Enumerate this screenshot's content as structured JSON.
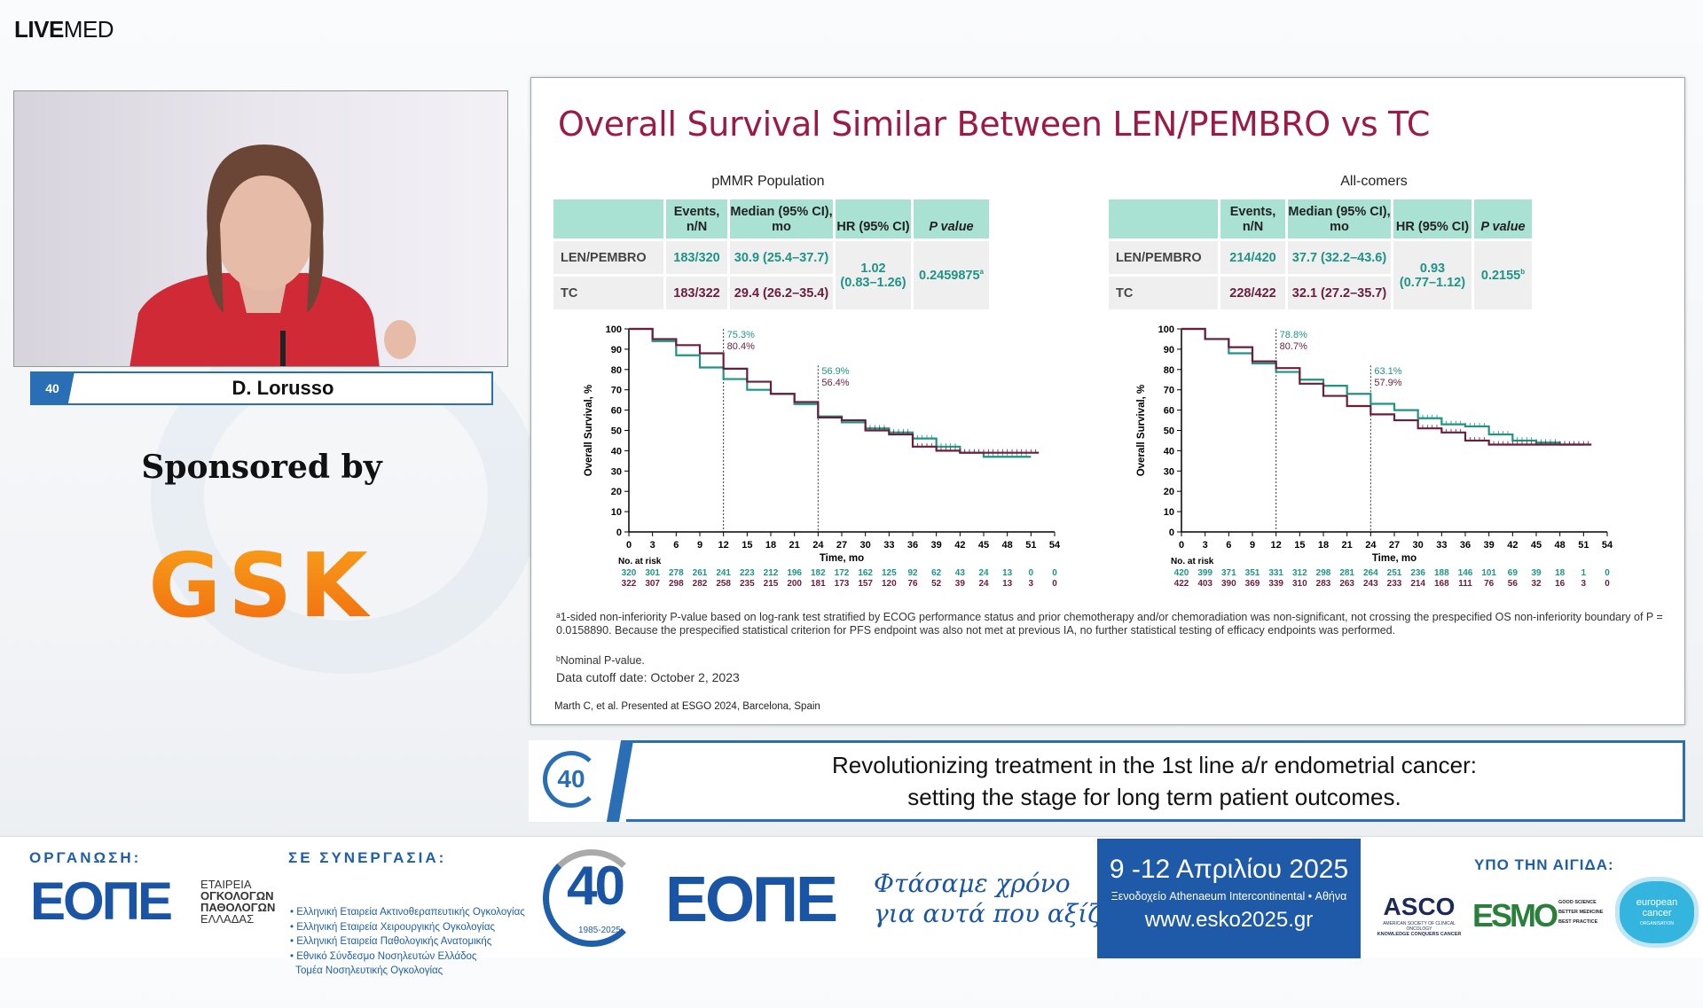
{
  "app": {
    "logo_bold": "LIVE",
    "logo_rest": "MED"
  },
  "speaker": {
    "badge": "40",
    "name": "D. Lorusso"
  },
  "sponsor": {
    "label": "Sponsored by",
    "brand": "GSK",
    "brand_color": "#f47b16"
  },
  "slide": {
    "title": "Overall Survival Similar Between LEN/PEMBRO vs TC",
    "colors": {
      "len_pembro": "#1e9486",
      "tc": "#6b1e3c",
      "header": "#a9e2d2"
    },
    "tables": [
      {
        "subtitle": "pMMR Population",
        "headers": [
          "",
          "Events, n/N",
          "Median (95% CI), mo",
          "HR (95% CI)",
          "P value"
        ],
        "rows": [
          {
            "arm": "LEN/PEMBRO",
            "events": "183/320",
            "median": "30.9 (25.4–37.7)"
          },
          {
            "arm": "TC",
            "events": "183/322",
            "median": "29.4 (26.2–35.4)"
          }
        ],
        "hr": "1.02",
        "hr_ci": "(0.83–1.26)",
        "p": "0.2459875",
        "p_sup": "a"
      },
      {
        "subtitle": "All-comers",
        "headers": [
          "",
          "Events, n/N",
          "Median (95% CI), mo",
          "HR (95% CI)",
          "P value"
        ],
        "rows": [
          {
            "arm": "LEN/PEMBRO",
            "events": "214/420",
            "median": "37.7 (32.2–43.6)"
          },
          {
            "arm": "TC",
            "events": "228/422",
            "median": "32.1 (27.2–35.7)"
          }
        ],
        "hr": "0.93",
        "hr_ci": "(0.77–1.12)",
        "p": "0.2155",
        "p_sup": "b"
      }
    ],
    "footnotes": {
      "a": "ᵃ1-sided non-inferiority P-value based on log-rank test stratified by ECOG performance status and prior chemotherapy and/or chemoradiation was non-significant, not crossing the prespecified OS non-inferiority boundary of  P = 0.0158890. Because the prespecified statistical criterion for PFS endpoint was also not met at previous IA, no further statistical testing of efficacy endpoints was performed.",
      "b": "ᵇNominal P-value.",
      "cutoff": "Data cutoff date: October 2, 2023",
      "citation": "Marth C, et al. Presented at ESGO 2024, Barcelona, Spain"
    }
  },
  "chart_data": [
    {
      "type": "line",
      "step": true,
      "ylabel": "Overall Survival, %",
      "xlabel": "Time, mo",
      "xlim": [
        0,
        54
      ],
      "ylim": [
        0,
        100
      ],
      "xticks": [
        0,
        3,
        6,
        9,
        12,
        15,
        18,
        21,
        24,
        27,
        30,
        33,
        36,
        39,
        42,
        45,
        48,
        51,
        54
      ],
      "yticks": [
        0,
        10,
        20,
        30,
        40,
        50,
        60,
        70,
        80,
        90,
        100
      ],
      "risk_label": "No. at risk",
      "series": [
        {
          "color": "#1e9486",
          "x": [
            0,
            3,
            6,
            9,
            12,
            15,
            18,
            21,
            24,
            27,
            30,
            33,
            36,
            39,
            42,
            45,
            48,
            51
          ],
          "y": [
            100,
            94,
            87,
            81,
            75.3,
            70,
            68,
            63,
            56.9,
            54,
            51,
            49,
            46,
            42,
            39,
            37,
            37,
            37
          ],
          "at_risk": [
            320,
            301,
            278,
            261,
            241,
            223,
            212,
            196,
            182,
            172,
            162,
            125,
            92,
            62,
            43,
            24,
            13,
            0,
            0
          ]
        },
        {
          "color": "#6b1e3c",
          "x": [
            0,
            3,
            6,
            9,
            12,
            15,
            18,
            21,
            24,
            27,
            30,
            33,
            36,
            39,
            42,
            45,
            48,
            52
          ],
          "y": [
            100,
            95,
            92,
            88,
            80.4,
            74,
            68,
            64,
            56.4,
            55,
            50,
            48,
            42,
            40,
            39,
            39,
            39,
            39
          ],
          "at_risk": [
            322,
            307,
            298,
            282,
            258,
            235,
            215,
            200,
            181,
            173,
            157,
            120,
            76,
            52,
            39,
            24,
            13,
            3,
            0
          ]
        }
      ],
      "annotations": [
        {
          "x": 12,
          "labels": [
            "75.3%",
            "80.4%"
          ]
        },
        {
          "x": 24,
          "labels": [
            "56.9%",
            "56.4%"
          ]
        }
      ]
    },
    {
      "type": "line",
      "step": true,
      "ylabel": "Overall Survival, %",
      "xlabel": "Time, mo",
      "xlim": [
        0,
        54
      ],
      "ylim": [
        0,
        100
      ],
      "xticks": [
        0,
        3,
        6,
        9,
        12,
        15,
        18,
        21,
        24,
        27,
        30,
        33,
        36,
        39,
        42,
        45,
        48,
        51,
        54
      ],
      "yticks": [
        0,
        10,
        20,
        30,
        40,
        50,
        60,
        70,
        80,
        90,
        100
      ],
      "risk_label": "No. at risk",
      "series": [
        {
          "color": "#1e9486",
          "x": [
            0,
            3,
            6,
            9,
            12,
            15,
            18,
            21,
            24,
            27,
            30,
            33,
            36,
            39,
            42,
            45,
            48,
            51
          ],
          "y": [
            100,
            95,
            88,
            83,
            78.8,
            75,
            72,
            68,
            63.1,
            60,
            56,
            53,
            52,
            48,
            45,
            44,
            43,
            43
          ],
          "at_risk": [
            420,
            399,
            371,
            351,
            331,
            312,
            298,
            281,
            264,
            251,
            236,
            188,
            146,
            101,
            69,
            39,
            18,
            1,
            0
          ]
        },
        {
          "color": "#6b1e3c",
          "x": [
            0,
            3,
            6,
            9,
            12,
            15,
            18,
            21,
            24,
            27,
            30,
            33,
            36,
            39,
            42,
            45,
            48,
            52
          ],
          "y": [
            100,
            95,
            91,
            84,
            80.7,
            73,
            67,
            62,
            57.9,
            55,
            51,
            49,
            45,
            43,
            43,
            43,
            43,
            43
          ],
          "at_risk": [
            422,
            403,
            390,
            369,
            339,
            310,
            283,
            263,
            243,
            233,
            214,
            168,
            111,
            76,
            56,
            32,
            16,
            3,
            0
          ]
        }
      ],
      "annotations": [
        {
          "x": 12,
          "labels": [
            "78.8%",
            "80.7%"
          ]
        },
        {
          "x": 24,
          "labels": [
            "63.1%",
            "57.9%"
          ]
        }
      ]
    }
  ],
  "caption": {
    "badge": "40",
    "line1": "Revolutionizing treatment in the 1st line a/r endometrial cancer:",
    "line2": "setting the stage for long term patient outcomes."
  },
  "footer": {
    "org_heading": "ΟΡΓΑΝΩΣΗ:",
    "org_logo": "ΕΟΠΕ",
    "org_name": [
      "ΕΤΑΙΡΕΙΑ",
      "ΟΓΚΟΛΟΓΩΝ",
      "ΠΑΘΟΛΟΓΩΝ",
      "ΕΛΛΑΔΑΣ"
    ],
    "collab_heading": "ΣΕ ΣΥΝΕΡΓΑΣΙΑ:",
    "collab": [
      "• Ελληνική Εταιρεία Ακτινοθεραπευτικής Ογκολογίας",
      "• Ελληνική Εταιρεία Χειρουργικής Ογκολογίας",
      "• Ελληνική Εταιρεία Παθολογικής Ανατομικής",
      "• Εθνικό Σύνδεσμο Νοσηλευτών Ελλάδος",
      "  Τομέα Νοσηλευτικής Ογκολογίας"
    ],
    "anniv": "40",
    "anniv_years": "1985-2025",
    "anniv_logo": "ΕΟΠΕ",
    "slogan": [
      "Φτάσαμε χρόνο",
      "για αυτά που αξίζουν"
    ],
    "event_dates": "9 -12 Απριλίου 2025",
    "event_venue": "Ξενοδοχείο Athenaeum Intercontinental • Αθήνα",
    "event_url": "www.esko2025.gr",
    "auspices_heading": "ΥΠΟ ΤΗΝ ΑΙΓΙΔΑ:",
    "asco": "ASCO",
    "asco_sub1": "AMERICAN SOCIETY OF CLINICAL ONCOLOGY",
    "asco_sub2": "KNOWLEDGE CONQUERS CANCER",
    "esmo": "ESMO",
    "esmo_tag": [
      "GOOD SCIENCE",
      "BETTER MEDICINE",
      "BEST PRACTICE"
    ],
    "eco": [
      "european",
      "cancer",
      "ORGANISATION"
    ]
  }
}
